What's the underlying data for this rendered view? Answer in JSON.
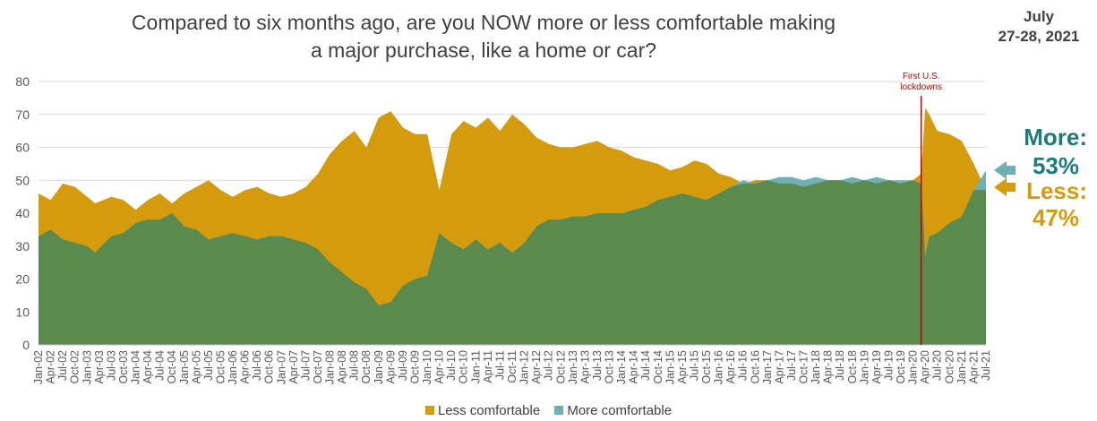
{
  "title_line1": "Compared to six months ago, are you NOW more or less comfortable making",
  "title_line2": "a major purchase, like a home or car?",
  "date_line1": "July",
  "date_line2": "27-28, 2021",
  "annotation_line1": "First U.S.",
  "annotation_line2": "lockdowns",
  "callout": {
    "more_label": "More:",
    "more_value": "53%",
    "less_label": "Less:",
    "less_value": "47%"
  },
  "legend": {
    "less": "Less comfortable",
    "more": "More comfortable"
  },
  "colors": {
    "less": "#d49b0d",
    "more": "#5b8a4f",
    "more_exposed": "#6fb0b4",
    "grid": "#d9d9d9",
    "lockdown_line": "#c00000",
    "more_text": "#1e7b7b",
    "less_text": "#d49b0d"
  },
  "chart_data": {
    "type": "area",
    "title": "Compared to six months ago, are you NOW more or less comfortable making a major purchase, like a home or car?",
    "ylim": [
      0,
      80
    ],
    "yticks": [
      0,
      10,
      20,
      30,
      40,
      50,
      60,
      70,
      80
    ],
    "grid": true,
    "legend_position": "bottom",
    "xlim_months": [
      "2002-01",
      "2021-07"
    ],
    "x_tick_labels": [
      "Jan-02",
      "Apr-02",
      "Jul-02",
      "Oct-02",
      "Jan-03",
      "Apr-03",
      "Jul-03",
      "Oct-03",
      "Jan-04",
      "Apr-04",
      "Jul-04",
      "Oct-04",
      "Jan-05",
      "Apr-05",
      "Jul-05",
      "Oct-05",
      "Jan-06",
      "Apr-06",
      "Jul-06",
      "Oct-06",
      "Jan-07",
      "Apr-07",
      "Jul-07",
      "Oct-07",
      "Jan-08",
      "Apr-08",
      "Jul-08",
      "Oct-08",
      "Jan-09",
      "Apr-09",
      "Jul-09",
      "Oct-09",
      "Jan-10",
      "Apr-10",
      "Jul-10",
      "Oct-10",
      "Jan-11",
      "Apr-11",
      "Jul-11",
      "Oct-11",
      "Jan-12",
      "Apr-12",
      "Jul-12",
      "Oct-12",
      "Jan-13",
      "Apr-13",
      "Jul-13",
      "Oct-13",
      "Jan-14",
      "Apr-14",
      "Jul-14",
      "Oct-14",
      "Jan-15",
      "Apr-15",
      "Jul-15",
      "Oct-15",
      "Jan-16",
      "Apr-16",
      "Jul-16",
      "Oct-16",
      "Jan-17",
      "Apr-17",
      "Jul-17",
      "Oct-17",
      "Jan-18",
      "Apr-18",
      "Jul-18",
      "Oct-18",
      "Jan-19",
      "Apr-19",
      "Jul-19",
      "Oct-19",
      "Jan-20",
      "Apr-20",
      "Jul-20",
      "Oct-20",
      "Jan-21",
      "Apr-21",
      "Jul-21"
    ],
    "annotation": {
      "text": "First U.S. lockdowns",
      "x": "2020-03"
    },
    "series": [
      {
        "name": "Less comfortable",
        "x": [
          "2002-01",
          "2002-04",
          "2002-07",
          "2002-10",
          "2003-01",
          "2003-03",
          "2003-07",
          "2003-10",
          "2004-01",
          "2004-04",
          "2004-07",
          "2004-10",
          "2005-01",
          "2005-04",
          "2005-07",
          "2005-10",
          "2006-01",
          "2006-04",
          "2006-07",
          "2006-10",
          "2007-01",
          "2007-04",
          "2007-07",
          "2007-10",
          "2008-01",
          "2008-04",
          "2008-07",
          "2008-10",
          "2009-01",
          "2009-04",
          "2009-07",
          "2009-10",
          "2010-01",
          "2010-04",
          "2010-07",
          "2010-10",
          "2011-01",
          "2011-04",
          "2011-07",
          "2011-10",
          "2012-01",
          "2012-04",
          "2012-07",
          "2012-10",
          "2013-01",
          "2013-04",
          "2013-07",
          "2013-10",
          "2014-01",
          "2014-04",
          "2014-07",
          "2014-10",
          "2015-01",
          "2015-04",
          "2015-07",
          "2015-10",
          "2016-01",
          "2016-04",
          "2016-07",
          "2016-10",
          "2017-01",
          "2017-04",
          "2017-07",
          "2017-10",
          "2018-01",
          "2018-04",
          "2018-07",
          "2018-10",
          "2019-01",
          "2019-04",
          "2019-07",
          "2019-10",
          "2020-01",
          "2020-03",
          "2020-04",
          "2020-05",
          "2020-07",
          "2020-10",
          "2021-01",
          "2021-04",
          "2021-07"
        ],
        "values": [
          46,
          44,
          49,
          48,
          45,
          43,
          45,
          44,
          41,
          44,
          46,
          43,
          46,
          48,
          50,
          47,
          45,
          47,
          48,
          46,
          45,
          46,
          48,
          52,
          58,
          62,
          65,
          60,
          69,
          71,
          66,
          64,
          64,
          47,
          64,
          68,
          66,
          69,
          65,
          70,
          67,
          63,
          61,
          60,
          60,
          61,
          62,
          60,
          59,
          57,
          56,
          55,
          53,
          54,
          56,
          55,
          52,
          51,
          49,
          50,
          50,
          49,
          49,
          48,
          49,
          50,
          50,
          49,
          50,
          49,
          50,
          49,
          50,
          52,
          72,
          70,
          65,
          64,
          62,
          55,
          47
        ]
      },
      {
        "name": "More comfortable",
        "x": [
          "2002-01",
          "2002-04",
          "2002-07",
          "2002-10",
          "2003-01",
          "2003-03",
          "2003-07",
          "2003-10",
          "2004-01",
          "2004-04",
          "2004-07",
          "2004-10",
          "2005-01",
          "2005-04",
          "2005-07",
          "2005-10",
          "2006-01",
          "2006-04",
          "2006-07",
          "2006-10",
          "2007-01",
          "2007-04",
          "2007-07",
          "2007-10",
          "2008-01",
          "2008-04",
          "2008-07",
          "2008-10",
          "2009-01",
          "2009-04",
          "2009-07",
          "2009-10",
          "2010-01",
          "2010-04",
          "2010-07",
          "2010-10",
          "2011-01",
          "2011-04",
          "2011-07",
          "2011-10",
          "2012-01",
          "2012-04",
          "2012-07",
          "2012-10",
          "2013-01",
          "2013-04",
          "2013-07",
          "2013-10",
          "2014-01",
          "2014-04",
          "2014-07",
          "2014-10",
          "2015-01",
          "2015-04",
          "2015-07",
          "2015-10",
          "2016-01",
          "2016-04",
          "2016-07",
          "2016-10",
          "2017-01",
          "2017-04",
          "2017-07",
          "2017-10",
          "2018-01",
          "2018-04",
          "2018-07",
          "2018-10",
          "2019-01",
          "2019-04",
          "2019-07",
          "2019-10",
          "2020-01",
          "2020-03",
          "2020-04",
          "2020-05",
          "2020-07",
          "2020-10",
          "2021-01",
          "2021-04",
          "2021-07"
        ],
        "values": [
          33,
          35,
          32,
          31,
          30,
          28,
          33,
          34,
          37,
          38,
          38,
          40,
          36,
          35,
          32,
          33,
          34,
          33,
          32,
          33,
          33,
          32,
          31,
          29,
          25,
          22,
          19,
          17,
          12,
          13,
          18,
          20,
          21,
          34,
          31,
          29,
          32,
          29,
          31,
          28,
          31,
          36,
          38,
          38,
          39,
          39,
          40,
          40,
          40,
          41,
          42,
          44,
          45,
          46,
          45,
          44,
          46,
          48,
          50,
          49,
          50,
          51,
          51,
          50,
          51,
          50,
          50,
          51,
          50,
          51,
          50,
          50,
          50,
          49,
          27,
          33,
          34,
          37,
          39,
          47,
          53
        ]
      }
    ]
  }
}
